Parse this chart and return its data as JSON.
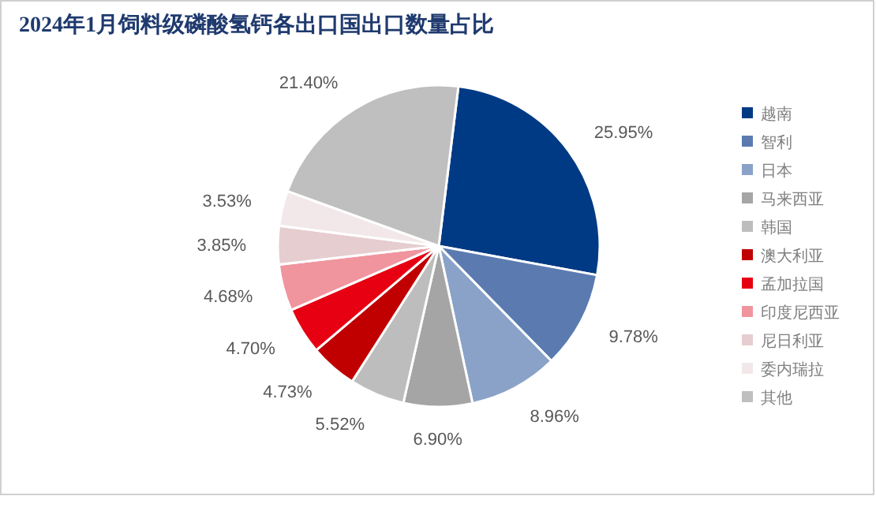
{
  "chart_data": {
    "type": "pie",
    "title": "2024年1月饲料级磷酸氢钙各出口国出口数量占比",
    "categories": [
      "越南",
      "智利",
      "日本",
      "马来西亚",
      "韩国",
      "澳大利亚",
      "孟加拉国",
      "印度尼西亚",
      "尼日利亚",
      "委内瑞拉",
      "其他"
    ],
    "values": [
      25.95,
      9.78,
      8.96,
      6.9,
      5.52,
      4.73,
      4.7,
      4.68,
      3.85,
      3.53,
      21.4
    ],
    "value_labels": [
      "25.95%",
      "9.78%",
      "8.96%",
      "6.90%",
      "5.52%",
      "4.73%",
      "4.70%",
      "4.68%",
      "3.85%",
      "3.53%",
      "21.40%"
    ],
    "colors": [
      "#003a84",
      "#5b7bb0",
      "#8aa2c8",
      "#a5a5a5",
      "#bdbdbd",
      "#c00000",
      "#e60012",
      "#f0949e",
      "#e6cdcf",
      "#f2e8e9",
      "#bfbfbf"
    ],
    "legend": "right"
  }
}
